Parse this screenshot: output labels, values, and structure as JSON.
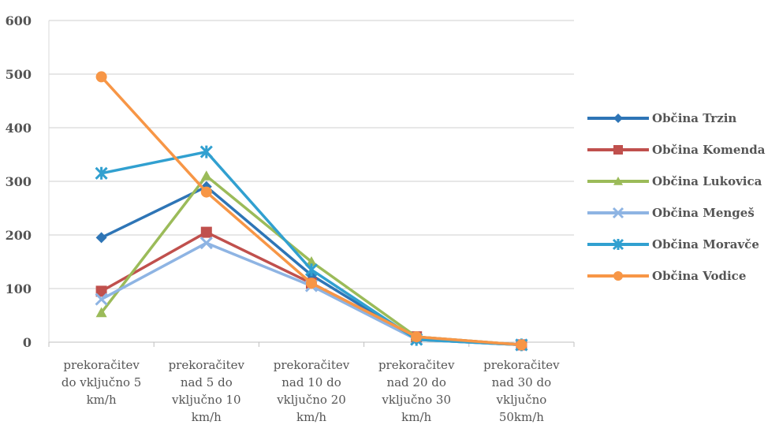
{
  "chart_data": {
    "type": "line",
    "title": "",
    "xlabel": "",
    "ylabel": "",
    "ylim": [
      0,
      600
    ],
    "yticks": [
      0,
      100,
      200,
      300,
      400,
      500,
      600
    ],
    "grid": true,
    "legend_position": "right",
    "categories": [
      [
        "prekoračitev",
        "do vključno 5",
        "km/h"
      ],
      [
        "prekoračitev",
        "nad 5 do",
        "vključno 10",
        "km/h"
      ],
      [
        "prekoračitev",
        "nad 10 do",
        "vključno 20",
        "km/h"
      ],
      [
        "prekoračitev",
        "nad 20 do",
        "vključno 30",
        "km/h"
      ],
      [
        "prekoračitev",
        "nad 30 do",
        "vključno",
        "50km/h"
      ]
    ],
    "series": [
      {
        "name": "Občina Trzin",
        "color": "#2E75B6",
        "marker": "diamond",
        "values": [
          195,
          290,
          125,
          5,
          -5
        ]
      },
      {
        "name": "Občina Komenda",
        "color": "#C0504D",
        "marker": "square",
        "values": [
          95,
          205,
          110,
          10,
          -5
        ]
      },
      {
        "name": "Občina Lukovica",
        "color": "#9BBB59",
        "marker": "triangle",
        "values": [
          55,
          310,
          150,
          10,
          -5
        ]
      },
      {
        "name": "Občina Mengeš",
        "color": "#8EB4E3",
        "marker": "x",
        "values": [
          80,
          185,
          105,
          5,
          -5
        ]
      },
      {
        "name": "Občina Moravče",
        "color": "#31A0D0",
        "marker": "star",
        "values": [
          315,
          355,
          135,
          5,
          -5
        ]
      },
      {
        "name": "Občina Vodice",
        "color": "#F79646",
        "marker": "circle",
        "values": [
          495,
          280,
          110,
          10,
          -5
        ]
      }
    ]
  }
}
